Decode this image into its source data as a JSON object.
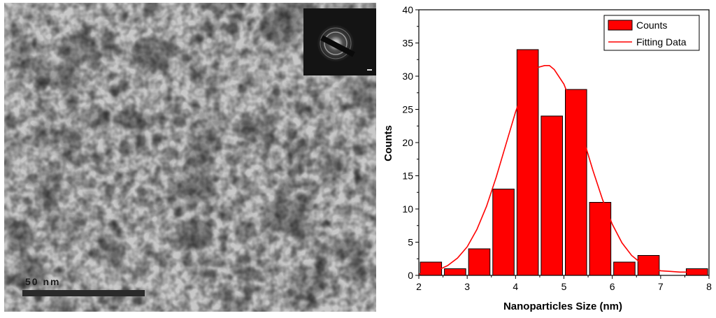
{
  "micrograph": {
    "scale_bar_label": "50 nm"
  },
  "chart_data": {
    "type": "bar",
    "title": "",
    "xlabel": "Nanoparticles Size (nm)",
    "ylabel": "Counts",
    "xlim": [
      2,
      8
    ],
    "ylim": [
      0,
      40
    ],
    "x_ticks": [
      2,
      3,
      4,
      5,
      6,
      7,
      8
    ],
    "y_ticks": [
      0,
      5,
      10,
      15,
      20,
      25,
      30,
      35,
      40
    ],
    "bin_width": 0.5,
    "bar_color": "#ff0000",
    "legend_position": "top-right",
    "series": [
      {
        "name": "Counts",
        "bin_centers": [
          2.25,
          2.75,
          3.25,
          3.75,
          4.25,
          4.75,
          5.25,
          5.75,
          6.25,
          6.75,
          7.25,
          7.75
        ],
        "values": [
          2,
          1,
          4,
          13,
          34,
          24,
          28,
          11,
          2,
          3,
          0,
          1
        ]
      },
      {
        "name": "Fitting Data",
        "type": "line",
        "x": [
          2.0,
          2.2,
          2.4,
          2.6,
          2.8,
          3.0,
          3.2,
          3.4,
          3.6,
          3.8,
          4.0,
          4.2,
          4.4,
          4.6,
          4.7,
          4.8,
          5.0,
          5.2,
          5.4,
          5.6,
          5.8,
          6.0,
          6.2,
          6.4,
          6.6,
          6.8,
          7.0,
          7.2,
          7.4,
          7.6,
          7.8
        ],
        "y": [
          0.2,
          0.4,
          0.8,
          1.5,
          2.6,
          4.3,
          6.9,
          10.4,
          14.8,
          19.7,
          24.6,
          28.7,
          31.2,
          31.6,
          31.6,
          31.0,
          28.8,
          25.1,
          20.6,
          15.8,
          11.4,
          7.7,
          4.9,
          3.0,
          1.8,
          1.1,
          0.7,
          0.6,
          0.5,
          0.5,
          0.5
        ]
      }
    ]
  }
}
